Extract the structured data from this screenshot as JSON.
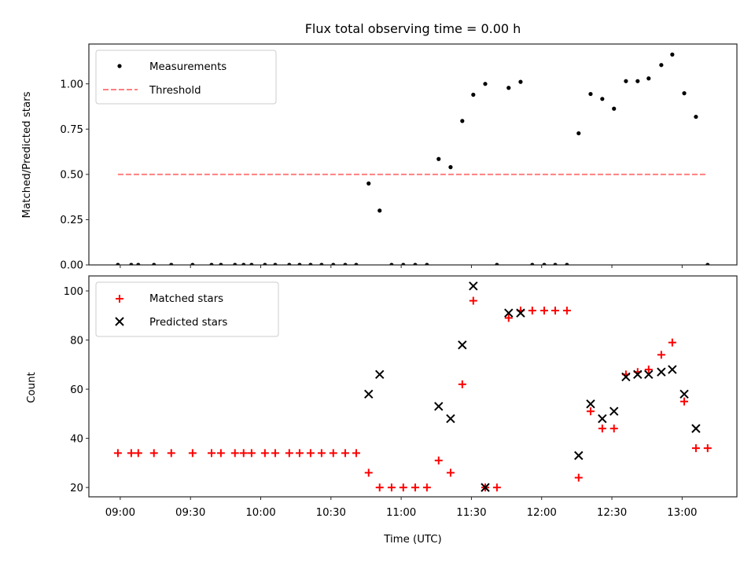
{
  "chart_data": [
    {
      "type": "scatter",
      "title": "Flux total observing time = 0.00 h",
      "xlabel": "",
      "ylabel": "Matched/Predicted stars",
      "ylim": [
        0,
        1.22
      ],
      "yticks": [
        "0.00",
        "0.25",
        "0.50",
        "0.75",
        "1.00"
      ],
      "ytick_values": [
        0,
        0.25,
        0.5,
        0.75,
        1.0
      ],
      "xlim_minutes_from_0900": [
        -13.4,
        263.4
      ],
      "xticks": [
        "09:00",
        "09:30",
        "10:00",
        "10:30",
        "11:00",
        "11:30",
        "12:00",
        "12:30",
        "13:00"
      ],
      "xtick_minutes": [
        0,
        30,
        60,
        90,
        120,
        150,
        180,
        210,
        240
      ],
      "legend_position": "upper-left",
      "series": [
        {
          "name": "Measurements",
          "marker": "dot",
          "color": "#000000",
          "x_minutes": [
            -1.0,
            4.7,
            7.7,
            14.4,
            21.8,
            30.9,
            39.0,
            43.0,
            49.0,
            52.7,
            56.1,
            61.8,
            66.2,
            72.2,
            76.6,
            81.3,
            86.0,
            91.0,
            96.1,
            100.8,
            106.1,
            110.8,
            115.9,
            120.9,
            126.0,
            131.0,
            136.0,
            141.1,
            146.1,
            150.8,
            155.9,
            160.9,
            165.9,
            171.0,
            176.0,
            181.1,
            185.8,
            190.8,
            195.8,
            200.9,
            205.9,
            210.9,
            216.0,
            221.0,
            225.7,
            231.1,
            235.8,
            240.9,
            245.9,
            250.9
          ],
          "values": [
            0,
            0,
            0,
            0,
            0,
            0,
            0,
            0,
            0,
            0,
            0,
            0,
            0,
            0,
            0,
            0,
            0,
            0,
            0,
            0,
            0.45,
            0.3,
            0,
            0,
            0,
            0,
            0.585,
            0.54,
            0.795,
            0.94,
            1.0,
            0,
            0.978,
            1.011,
            0,
            0,
            0,
            0,
            0.727,
            0.944,
            0.917,
            0.863,
            1.015,
            1.015,
            1.03,
            1.104,
            1.162,
            0.948,
            0.818,
            0
          ]
        },
        {
          "name": "Threshold",
          "marker": "dashed-line",
          "color": "#ff7f7f",
          "x_minutes": [
            -1.0,
            250.9
          ],
          "values": [
            0.5,
            0.5
          ]
        }
      ]
    },
    {
      "type": "scatter",
      "title": "",
      "xlabel": "Time (UTC)",
      "ylabel": "Count",
      "ylim": [
        16.2,
        106.1
      ],
      "yticks": [
        "20",
        "40",
        "60",
        "80",
        "100"
      ],
      "ytick_values": [
        20,
        40,
        60,
        80,
        100
      ],
      "xlim_minutes_from_0900": [
        -13.4,
        263.4
      ],
      "xticks": [
        "09:00",
        "09:30",
        "10:00",
        "10:30",
        "11:00",
        "11:30",
        "12:00",
        "12:30",
        "13:00"
      ],
      "xtick_minutes": [
        0,
        30,
        60,
        90,
        120,
        150,
        180,
        210,
        240
      ],
      "legend_position": "upper-left",
      "series": [
        {
          "name": "Matched stars",
          "marker": "plus",
          "color": "#ff0000",
          "x_minutes": [
            -1.0,
            4.7,
            7.7,
            14.4,
            21.8,
            30.9,
            39.0,
            43.0,
            49.0,
            52.7,
            56.1,
            61.8,
            66.2,
            72.2,
            76.6,
            81.3,
            86.0,
            91.0,
            96.1,
            100.8,
            106.1,
            110.8,
            115.9,
            120.9,
            126.0,
            131.0,
            136.0,
            141.1,
            146.1,
            150.8,
            155.9,
            160.9,
            165.9,
            171.0,
            176.0,
            181.1,
            185.8,
            190.8,
            195.8,
            200.9,
            205.9,
            210.9,
            216.0,
            221.0,
            225.7,
            231.1,
            235.8,
            240.9,
            245.9,
            250.9
          ],
          "values": [
            34,
            34,
            34,
            34,
            34,
            34,
            34,
            34,
            34,
            34,
            34,
            34,
            34,
            34,
            34,
            34,
            34,
            34,
            34,
            34,
            26,
            20,
            20,
            20,
            20,
            20,
            31,
            26,
            62,
            96,
            20,
            20,
            89,
            92,
            92,
            92,
            92,
            92,
            24,
            51,
            44,
            44,
            66,
            67,
            68,
            74,
            79,
            55,
            36,
            36
          ]
        },
        {
          "name": "Predicted stars",
          "marker": "x",
          "color": "#000000",
          "x_minutes": [
            106.1,
            110.8,
            136.0,
            141.1,
            146.1,
            150.8,
            155.9,
            165.9,
            171.0,
            195.8,
            200.9,
            205.9,
            210.9,
            216.0,
            221.0,
            225.7,
            231.1,
            235.8,
            240.9,
            245.9
          ],
          "values": [
            58,
            66,
            53,
            48,
            78,
            102,
            20,
            91,
            91,
            33,
            54,
            48,
            51,
            65,
            66,
            66,
            67,
            68,
            58,
            44
          ]
        }
      ]
    }
  ]
}
